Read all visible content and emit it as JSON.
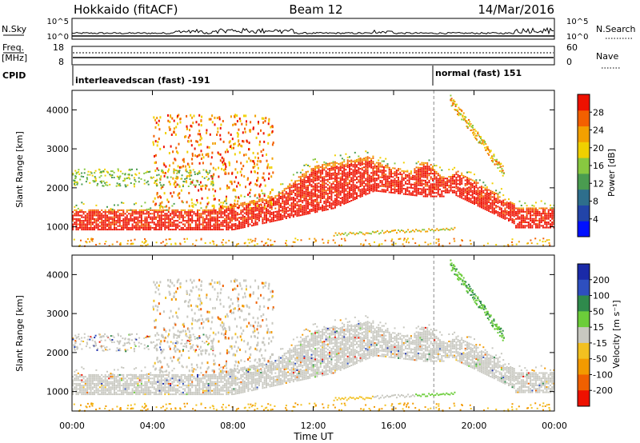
{
  "header": {
    "station": "Hokkaido (fitACF)",
    "beam": "Beam 12",
    "date": "14/Mar/2016"
  },
  "housekeeping": {
    "nsky_label": "N.Sky",
    "nsearch_label": "N.Search",
    "nsky_ticks": [
      "10^5",
      "10^0"
    ],
    "nsearch_ticks": [
      "10^5",
      "10^0"
    ],
    "freq_label_1": "Freq.",
    "freq_label_2": "[MHz]",
    "freq_ticks": [
      "18",
      "8"
    ],
    "nave_label": "Nave",
    "nave_ticks": [
      "60",
      "0"
    ],
    "cpid_label": "CPID",
    "cpid_segments": [
      {
        "text": "interleavedscan (fast) -191",
        "start_hour": 0
      },
      {
        "text": "normal (fast) 151",
        "start_hour": 18
      }
    ]
  },
  "chart_data": [
    {
      "type": "heatmap",
      "name": "power-panel",
      "xlabel": "",
      "ylabel": "Slant Range [km]",
      "xlim": [
        0,
        24
      ],
      "ylim": [
        500,
        4500
      ],
      "yticks": [
        "1000",
        "2000",
        "3000",
        "4000"
      ],
      "colorbar": {
        "label": "Power [dB]",
        "ticks": [
          "4",
          "8",
          "12",
          "16",
          "20",
          "24",
          "28"
        ],
        "tick_values": [
          4,
          8,
          12,
          16,
          20,
          24,
          28
        ],
        "range": [
          0,
          32
        ],
        "colors": [
          "#0010ff",
          "#2244a8",
          "#2e6e8c",
          "#4a9c50",
          "#88c840",
          "#f0d000",
          "#f3a000",
          "#f36000",
          "#ee1100"
        ]
      },
      "echo_regions": [
        {
          "label": "main band",
          "x_start": 0,
          "x_end": 24,
          "range_km": [
            900,
            2900
          ],
          "power_db": [
            20,
            30
          ]
        },
        {
          "label": "lower band",
          "x_start": 13,
          "x_end": 19,
          "range_km": [
            700,
            950
          ],
          "power_db": [
            16,
            28
          ]
        },
        {
          "label": "far range",
          "x_start": 18.8,
          "x_end": 21.5,
          "range_km": [
            2400,
            4400
          ],
          "power_db": [
            10,
            24
          ]
        }
      ]
    },
    {
      "type": "heatmap",
      "name": "velocity-panel",
      "xlabel": "Time UT",
      "ylabel": "Slant Range [km]",
      "xlim": [
        0,
        24
      ],
      "ylim": [
        500,
        4500
      ],
      "xticks": [
        "00:00",
        "04:00",
        "08:00",
        "12:00",
        "16:00",
        "20:00",
        "00:00"
      ],
      "yticks": [
        "1000",
        "2000",
        "3000",
        "4000"
      ],
      "colorbar": {
        "label": "Velocity [m s⁻¹]",
        "ticks": [
          "200",
          "100",
          "50",
          "15",
          "-15",
          "-50",
          "-100",
          "-200"
        ],
        "colors": [
          "#1a2aa8",
          "#2e4fbf",
          "#2f8a4c",
          "#6ccd3a",
          "#c8c8c0",
          "#f2c020",
          "#f39a00",
          "#f06000",
          "#ee1100"
        ]
      },
      "echo_regions": [
        {
          "label": "ground scatter",
          "x_start": 0,
          "x_end": 24,
          "range_km": [
            900,
            2900
          ],
          "velocity_ms": [
            -15,
            15
          ]
        },
        {
          "label": "lower band",
          "x_start": 13,
          "x_end": 19,
          "range_km": [
            700,
            950
          ],
          "velocity_ms": [
            -60,
            60
          ]
        },
        {
          "label": "far range",
          "x_start": 18.8,
          "x_end": 21.5,
          "range_km": [
            2400,
            4400
          ],
          "velocity_ms": [
            15,
            100
          ]
        }
      ]
    }
  ]
}
